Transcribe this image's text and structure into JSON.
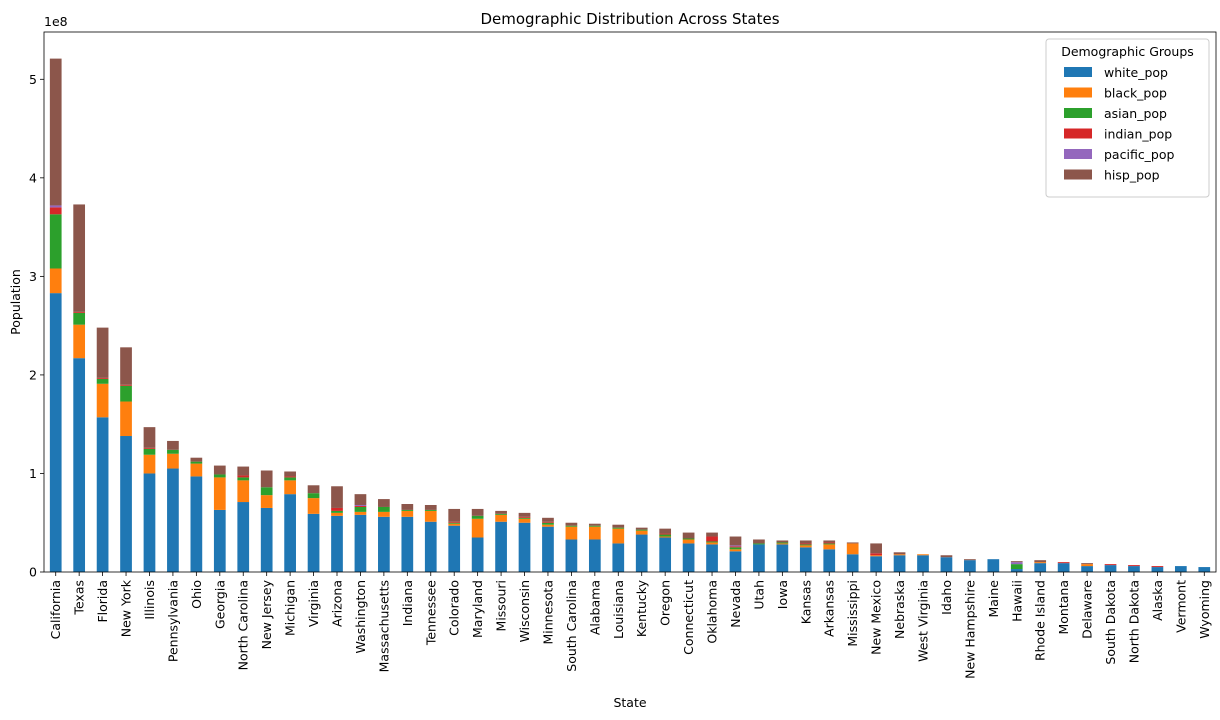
{
  "chart_data": {
    "type": "bar",
    "stacked": true,
    "title": "Demographic Distribution Across States",
    "xlabel": "State",
    "ylabel": "Population",
    "y_offset_label": "1e8",
    "ylim": [
      0,
      5.48
    ],
    "y_unit_multiplier": 100000000,
    "yticks": [
      0,
      1,
      2,
      3,
      4,
      5
    ],
    "ytick_labels": [
      "0",
      "1",
      "2",
      "3",
      "4",
      "5"
    ],
    "grid": false,
    "legend": {
      "title": "Demographic Groups",
      "placement": "top-right"
    },
    "categories": [
      "California",
      "Texas",
      "Florida",
      "New York",
      "Illinois",
      "Pennsylvania",
      "Ohio",
      "Georgia",
      "North Carolina",
      "New Jersey",
      "Michigan",
      "Virginia",
      "Arizona",
      "Washington",
      "Massachusetts",
      "Indiana",
      "Tennessee",
      "Colorado",
      "Maryland",
      "Missouri",
      "Wisconsin",
      "Minnesota",
      "South Carolina",
      "Alabama",
      "Louisiana",
      "Kentucky",
      "Oregon",
      "Connecticut",
      "Oklahoma",
      "Nevada",
      "Utah",
      "Iowa",
      "Kansas",
      "Arkansas",
      "Mississippi",
      "New Mexico",
      "Nebraska",
      "West Virginia",
      "Idaho",
      "New Hampshire",
      "Maine",
      "Hawaii",
      "Rhode Island",
      "Montana",
      "Delaware",
      "South Dakota",
      "North Dakota",
      "Alaska",
      "Vermont",
      "Wyoming"
    ],
    "series": [
      {
        "name": "white_pop",
        "color": "#1f77b4",
        "values": [
          2.83,
          2.17,
          1.57,
          1.38,
          1.0,
          1.05,
          0.97,
          0.63,
          0.71,
          0.65,
          0.79,
          0.59,
          0.57,
          0.58,
          0.56,
          0.56,
          0.51,
          0.47,
          0.35,
          0.51,
          0.5,
          0.46,
          0.33,
          0.33,
          0.29,
          0.38,
          0.35,
          0.29,
          0.28,
          0.21,
          0.28,
          0.28,
          0.25,
          0.23,
          0.18,
          0.16,
          0.17,
          0.17,
          0.15,
          0.12,
          0.13,
          0.03,
          0.09,
          0.09,
          0.06,
          0.07,
          0.06,
          0.05,
          0.06,
          0.05
        ]
      },
      {
        "name": "black_pop",
        "color": "#ff7f0e",
        "values": [
          0.25,
          0.34,
          0.34,
          0.35,
          0.19,
          0.15,
          0.13,
          0.33,
          0.22,
          0.13,
          0.14,
          0.16,
          0.03,
          0.03,
          0.05,
          0.06,
          0.11,
          0.02,
          0.19,
          0.07,
          0.04,
          0.02,
          0.13,
          0.13,
          0.15,
          0.04,
          0.01,
          0.04,
          0.02,
          0.02,
          0.0,
          0.01,
          0.02,
          0.05,
          0.11,
          0.01,
          0.01,
          0.01,
          0.0,
          0.0,
          0.0,
          0.0,
          0.01,
          0.0,
          0.02,
          0.0,
          0.0,
          0.0,
          0.0,
          0.0
        ]
      },
      {
        "name": "asian_pop",
        "color": "#2ca02c",
        "values": [
          0.55,
          0.12,
          0.05,
          0.16,
          0.06,
          0.04,
          0.02,
          0.03,
          0.03,
          0.08,
          0.03,
          0.05,
          0.02,
          0.05,
          0.05,
          0.01,
          0.01,
          0.01,
          0.03,
          0.01,
          0.01,
          0.02,
          0.01,
          0.01,
          0.01,
          0.01,
          0.02,
          0.01,
          0.01,
          0.02,
          0.01,
          0.01,
          0.01,
          0.01,
          0.0,
          0.0,
          0.0,
          0.0,
          0.0,
          0.0,
          0.0,
          0.05,
          0.0,
          0.0,
          0.0,
          0.0,
          0.0,
          0.0,
          0.0,
          0.0
        ]
      },
      {
        "name": "indian_pop",
        "color": "#d62728",
        "values": [
          0.07,
          0.01,
          0.01,
          0.01,
          0.01,
          0.0,
          0.0,
          0.0,
          0.02,
          0.0,
          0.01,
          0.0,
          0.03,
          0.01,
          0.0,
          0.0,
          0.0,
          0.01,
          0.0,
          0.0,
          0.01,
          0.01,
          0.0,
          0.0,
          0.0,
          0.0,
          0.01,
          0.0,
          0.05,
          0.01,
          0.0,
          0.0,
          0.01,
          0.01,
          0.0,
          0.02,
          0.0,
          0.0,
          0.0,
          0.0,
          0.0,
          0.0,
          0.0,
          0.01,
          0.0,
          0.01,
          0.01,
          0.01,
          0.0,
          0.0
        ]
      },
      {
        "name": "pacific_pop",
        "color": "#9467bd",
        "values": [
          0.02,
          0.0,
          0.0,
          0.0,
          0.0,
          0.0,
          0.0,
          0.0,
          0.0,
          0.0,
          0.0,
          0.0,
          0.0,
          0.01,
          0.0,
          0.0,
          0.0,
          0.0,
          0.0,
          0.0,
          0.0,
          0.0,
          0.0,
          0.0,
          0.0,
          0.0,
          0.0,
          0.0,
          0.0,
          0.01,
          0.0,
          0.0,
          0.0,
          0.0,
          0.0,
          0.0,
          0.0,
          0.0,
          0.0,
          0.0,
          0.0,
          0.02,
          0.0,
          0.0,
          0.0,
          0.0,
          0.0,
          0.0,
          0.0,
          0.0
        ]
      },
      {
        "name": "hisp_pop",
        "color": "#8c564b",
        "values": [
          1.49,
          1.09,
          0.51,
          0.38,
          0.21,
          0.09,
          0.04,
          0.09,
          0.09,
          0.17,
          0.05,
          0.08,
          0.22,
          0.11,
          0.08,
          0.06,
          0.05,
          0.13,
          0.07,
          0.03,
          0.04,
          0.04,
          0.03,
          0.02,
          0.03,
          0.02,
          0.05,
          0.06,
          0.04,
          0.09,
          0.04,
          0.02,
          0.03,
          0.02,
          0.01,
          0.1,
          0.02,
          0.0,
          0.02,
          0.01,
          0.0,
          0.01,
          0.02,
          0.0,
          0.01,
          0.0,
          0.0,
          0.0,
          0.0,
          0.0
        ]
      }
    ]
  }
}
